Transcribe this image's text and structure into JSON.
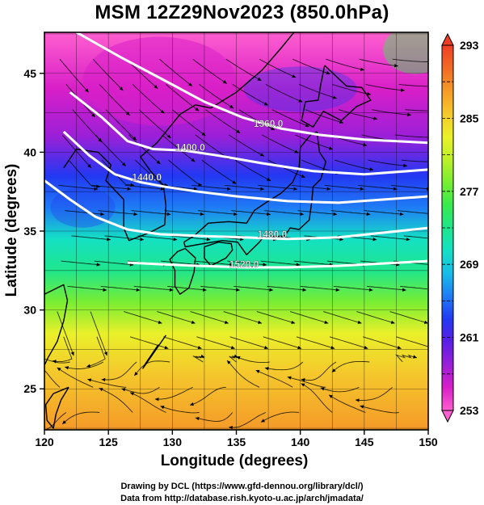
{
  "title": "MSM 12Z29Nov2023 (850.0hPa)",
  "credits": {
    "line1": "Drawing by DCL (https://www.gfd-dennou.org/library/dcl/)",
    "line2": "Data from http://database.rish.kyoto-u.ac.jp/arch/jmadata/"
  },
  "chart_data": {
    "type": "heatmap",
    "xlabel": "Longitude (degrees)",
    "ylabel": "Latitude  (degrees)",
    "xlim": [
      120,
      150
    ],
    "ylim": [
      22.4,
      47.6
    ],
    "x_ticks": [
      120,
      125,
      130,
      135,
      140,
      145,
      150
    ],
    "y_ticks": [
      25,
      30,
      35,
      40,
      45
    ],
    "grid": true,
    "colorbar": {
      "min": 253,
      "max": 293,
      "tick_labels": [
        253,
        261,
        269,
        277,
        285,
        293
      ],
      "colors": [
        "#ff5fcf",
        "#d81fc8",
        "#9b1fd8",
        "#5a1fe6",
        "#2238f2",
        "#1f7cf6",
        "#18bce8",
        "#14e0c4",
        "#1fe68c",
        "#38ea4c",
        "#79ee32",
        "#bdf02a",
        "#eaf02a",
        "#f5c82c",
        "#f59a28",
        "#f26a26",
        "#ef3e26"
      ]
    },
    "temperature_bands": [
      {
        "lat": 47.6,
        "k": 254
      },
      {
        "lat": 44,
        "k": 256
      },
      {
        "lat": 41,
        "k": 259
      },
      {
        "lat": 38.5,
        "k": 262
      },
      {
        "lat": 36.5,
        "k": 266
      },
      {
        "lat": 34.5,
        "k": 270
      },
      {
        "lat": 32.5,
        "k": 274
      },
      {
        "lat": 30.5,
        "k": 278
      },
      {
        "lat": 28.5,
        "k": 282
      },
      {
        "lat": 26,
        "k": 286
      },
      {
        "lat": 22.4,
        "k": 289
      }
    ],
    "height_contours": [
      {
        "label": "1360.0",
        "label_lon": 137.5,
        "label_lat": 41.6,
        "path": [
          [
            122.5,
            47.6
          ],
          [
            126,
            46
          ],
          [
            129.5,
            44.5
          ],
          [
            132.5,
            43.2
          ],
          [
            135.5,
            42.2
          ],
          [
            138.5,
            41.5
          ],
          [
            141.5,
            41.1
          ],
          [
            145,
            40.8
          ],
          [
            150,
            40.6
          ]
        ]
      },
      {
        "label": "1400.0",
        "label_lon": 131.4,
        "label_lat": 40.1,
        "path": [
          [
            122,
            43.8
          ],
          [
            124.5,
            42.2
          ],
          [
            126.5,
            40.7
          ],
          [
            128.5,
            40.2
          ],
          [
            131,
            40.1
          ],
          [
            133.5,
            39.8
          ],
          [
            137,
            39.3
          ],
          [
            141,
            38.8
          ],
          [
            145,
            38.6
          ],
          [
            150,
            38.9
          ]
        ]
      },
      {
        "label": "1440.0",
        "label_lon": 128.0,
        "label_lat": 38.2,
        "path": [
          [
            121.5,
            41.3
          ],
          [
            123.5,
            39.8
          ],
          [
            125.5,
            38.6
          ],
          [
            127.5,
            38.1
          ],
          [
            129.5,
            37.8
          ],
          [
            132,
            37.5
          ],
          [
            135,
            37.2
          ],
          [
            139,
            36.9
          ],
          [
            143,
            36.8
          ],
          [
            150,
            37.2
          ]
        ]
      },
      {
        "label": "1480.0",
        "label_lon": 137.8,
        "label_lat": 34.6,
        "path": [
          [
            120,
            38.2
          ],
          [
            122,
            37.0
          ],
          [
            124,
            35.9
          ],
          [
            126.5,
            35.1
          ],
          [
            129,
            34.8
          ],
          [
            132,
            34.7
          ],
          [
            135.5,
            34.6
          ],
          [
            139,
            34.5
          ],
          [
            143,
            34.6
          ],
          [
            150,
            35.2
          ]
        ]
      },
      {
        "label": "1520.0",
        "label_lon": 135.6,
        "label_lat": 32.7,
        "path": [
          [
            126.5,
            33.0
          ],
          [
            129,
            32.9
          ],
          [
            132,
            32.8
          ],
          [
            135.5,
            32.7
          ],
          [
            139,
            32.7
          ],
          [
            143,
            32.8
          ],
          [
            150,
            33.1
          ]
        ]
      }
    ],
    "annotations": [
      "1360.0",
      "1400.0",
      "1440.0",
      "1480.0",
      "1520.0"
    ]
  }
}
